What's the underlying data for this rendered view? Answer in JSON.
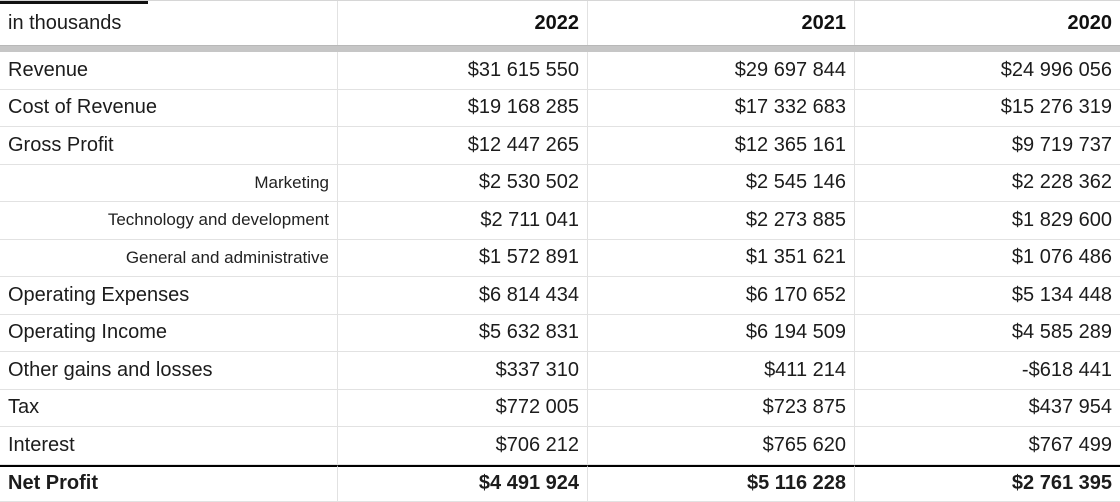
{
  "table": {
    "unit_label": "in thousands",
    "years": [
      "2022",
      "2021",
      "2020"
    ],
    "rows": [
      {
        "label": "Revenue",
        "sub": false,
        "total": false,
        "values": [
          "$31 615 550",
          "$29 697 844",
          "$24 996 056"
        ]
      },
      {
        "label": "Cost of Revenue",
        "sub": false,
        "total": false,
        "values": [
          "$19 168 285",
          "$17 332 683",
          "$15 276 319"
        ]
      },
      {
        "label": "Gross Profit",
        "sub": false,
        "total": false,
        "values": [
          "$12 447 265",
          "$12 365 161",
          "$9 719 737"
        ]
      },
      {
        "label": "Marketing",
        "sub": true,
        "total": false,
        "values": [
          "$2 530 502",
          "$2 545 146",
          "$2 228 362"
        ]
      },
      {
        "label": "Technology and development",
        "sub": true,
        "total": false,
        "values": [
          "$2 711 041",
          "$2 273 885",
          "$1 829 600"
        ]
      },
      {
        "label": "General and administrative",
        "sub": true,
        "total": false,
        "values": [
          "$1 572 891",
          "$1 351 621",
          "$1 076 486"
        ]
      },
      {
        "label": "Operating Expenses",
        "sub": false,
        "total": false,
        "values": [
          "$6 814 434",
          "$6 170 652",
          "$5 134 448"
        ]
      },
      {
        "label": "Operating Income",
        "sub": false,
        "total": false,
        "values": [
          "$5 632 831",
          "$6 194 509",
          "$4 585 289"
        ]
      },
      {
        "label": "Other gains and losses",
        "sub": false,
        "total": false,
        "values": [
          "$337 310",
          "$411 214",
          "-$618 441"
        ]
      },
      {
        "label": "Tax",
        "sub": false,
        "total": false,
        "values": [
          "$772 005",
          "$723 875",
          "$437 954"
        ]
      },
      {
        "label": "Interest",
        "sub": false,
        "total": false,
        "values": [
          "$706 212",
          "$765 620",
          "$767 499"
        ]
      },
      {
        "label": "Net Profit",
        "sub": false,
        "total": true,
        "values": [
          "$4 491 924",
          "$5 116 228",
          "$2 761 395"
        ]
      }
    ]
  }
}
